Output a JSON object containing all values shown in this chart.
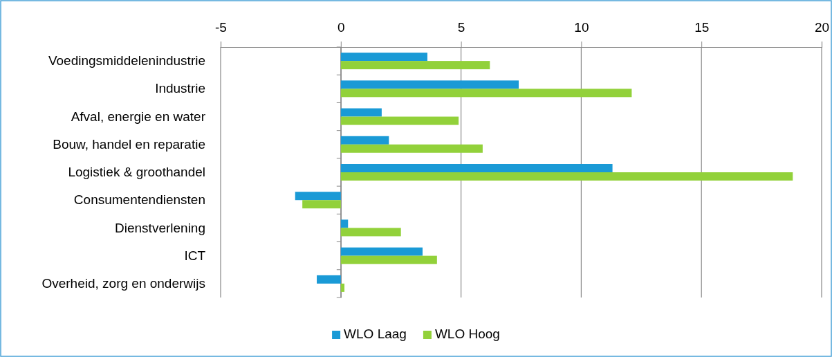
{
  "chart_data": {
    "type": "bar",
    "orientation": "horizontal",
    "categories": [
      "Voedingsmiddelenindustrie",
      "Industrie",
      "Afval, energie en water",
      "Bouw, handel en reparatie",
      "Logistiek & groothandel",
      "Consumentendiensten",
      "Dienstverlening",
      "ICT",
      "Overheid, zorg en onderwijs"
    ],
    "series": [
      {
        "name": "WLO Laag",
        "color": "#1a9ad6",
        "values": [
          3.6,
          7.4,
          1.7,
          2.0,
          11.3,
          -1.9,
          0.3,
          3.4,
          -1.0
        ]
      },
      {
        "name": "WLO Hoog",
        "color": "#92d13a",
        "values": [
          6.2,
          12.1,
          4.9,
          5.9,
          18.8,
          -1.6,
          2.5,
          4.0,
          0.15
        ]
      }
    ],
    "xlim": [
      -5,
      20
    ],
    "xticks": [
      -5,
      0,
      5,
      10,
      15,
      20
    ],
    "grid": "x",
    "legend": "bottom"
  }
}
